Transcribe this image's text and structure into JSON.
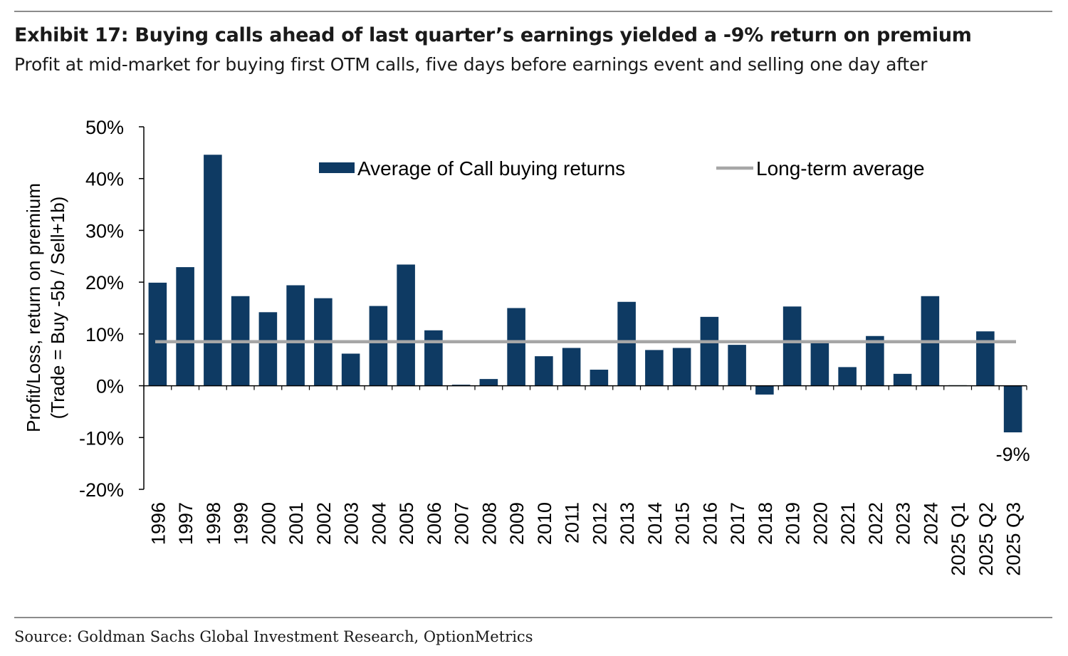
{
  "header": {
    "title": "Exhibit 17: Buying calls ahead of last quarter’s earnings yielded a -9% return on premium",
    "subtitle": "Profit at mid-market for buying first OTM calls, five days before earnings event and selling one day after"
  },
  "footer": {
    "source": "Source: Goldman Sachs Global Investment Research, OptionMetrics"
  },
  "colors": {
    "bar": "#0e3a63",
    "average_line": "#a6a6a6",
    "axis": "#000000"
  },
  "chart_data": {
    "type": "bar",
    "title": "Exhibit 17: Buying calls ahead of last quarter’s earnings yielded a -9% return on premium",
    "ylabel_line1": "Profit/Loss, return on premium",
    "ylabel_line2": "(Trade = Buy -5b / Sell+1b)",
    "xlabel": "",
    "ylim": [
      -20,
      50
    ],
    "yticks": [
      50,
      40,
      30,
      20,
      10,
      0,
      -10,
      -20
    ],
    "ytick_labels": [
      "50%",
      "40%",
      "30%",
      "20%",
      "10%",
      "0%",
      "-10%",
      "-20%"
    ],
    "grid": false,
    "legend_position": "top",
    "categories": [
      "1996",
      "1997",
      "1998",
      "1999",
      "2000",
      "2001",
      "2002",
      "2003",
      "2004",
      "2005",
      "2006",
      "2007",
      "2008",
      "2009",
      "2010",
      "2011",
      "2012",
      "2013",
      "2014",
      "2015",
      "2016",
      "2017",
      "2018",
      "2019",
      "2020",
      "2021",
      "2022",
      "2023",
      "2024",
      "2025 Q1",
      "2025 Q2",
      "2025 Q3"
    ],
    "series": [
      {
        "name": "Average of Call buying returns",
        "kind": "bar",
        "values": [
          19.9,
          22.9,
          44.6,
          17.3,
          14.2,
          19.4,
          16.9,
          6.2,
          15.4,
          23.4,
          10.7,
          0.2,
          1.3,
          15.0,
          5.7,
          7.3,
          3.1,
          16.2,
          6.9,
          7.3,
          13.3,
          7.9,
          -1.7,
          15.3,
          8.2,
          3.6,
          9.6,
          2.3,
          17.3,
          0.1,
          10.5,
          -9.0
        ]
      },
      {
        "name": "Long-term average",
        "kind": "line",
        "value": 8.5
      }
    ],
    "annotations": [
      {
        "category": "2025 Q3",
        "text": "-9%"
      }
    ]
  }
}
